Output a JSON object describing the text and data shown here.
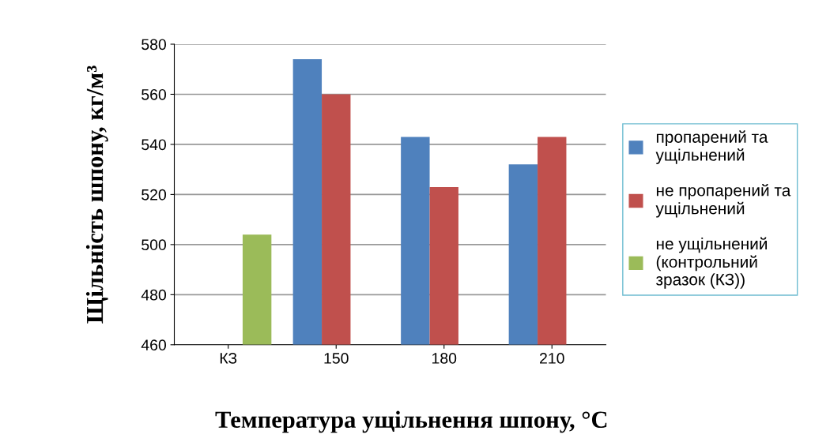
{
  "chart_data": {
    "type": "bar",
    "xlabel": "Температура ущільнення шпону, °С",
    "ylabel": "Щільність шпону, кг/м³",
    "categories": [
      "КЗ",
      "150",
      "180",
      "210"
    ],
    "series": [
      {
        "name": "пропарений та ущільнений",
        "color": "#4f81bd",
        "values": [
          null,
          574,
          543,
          532
        ]
      },
      {
        "name": "не пропарений та ущільнений",
        "color": "#c0504d",
        "values": [
          null,
          560,
          523,
          543
        ]
      },
      {
        "name": "не ущільнений (контрольний зразок (КЗ))",
        "color": "#9bbb59",
        "values": [
          504,
          null,
          null,
          null
        ]
      }
    ],
    "ylim": [
      460,
      580
    ],
    "yticks": [
      460,
      480,
      500,
      520,
      540,
      560,
      580
    ],
    "grid": "y",
    "legend": "right"
  }
}
